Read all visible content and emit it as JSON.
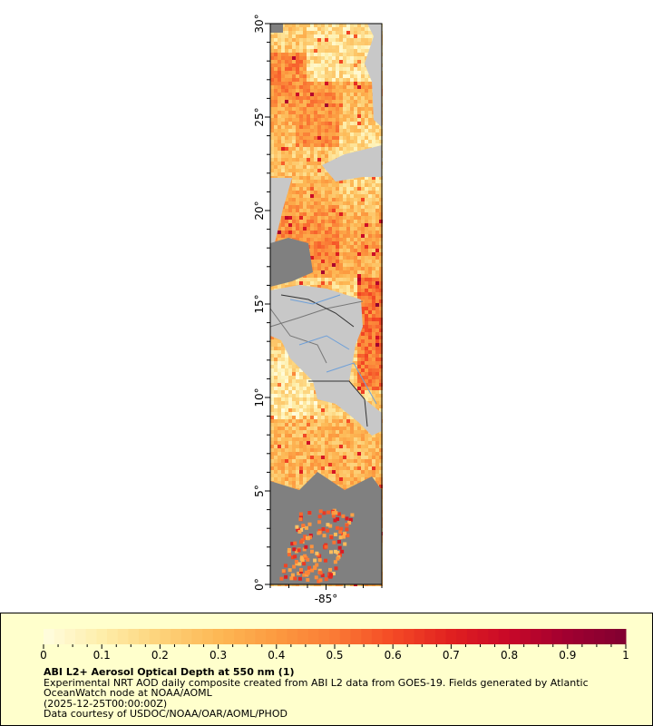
{
  "map": {
    "lat_range": [
      0,
      30
    ],
    "lon_range": [
      -88,
      -82
    ],
    "lat_ticks": [
      {
        "value": 0,
        "label": "0°"
      },
      {
        "value": 5,
        "label": "5°"
      },
      {
        "value": 10,
        "label": "10°"
      },
      {
        "value": 15,
        "label": "15°"
      },
      {
        "value": 20,
        "label": "20°"
      },
      {
        "value": 25,
        "label": "25°"
      },
      {
        "value": 30,
        "label": "30°"
      }
    ],
    "lon_ticks": [
      {
        "value": -85,
        "label": "-85°"
      }
    ],
    "colors": {
      "land": "#c8c8c8",
      "no_data": "#808080",
      "border": "#333333",
      "river": "#6fa0d8"
    }
  },
  "legend": {
    "colorbar": {
      "min": 0,
      "max": 1,
      "tick_labels": [
        "0",
        "0.1",
        "0.2",
        "0.3",
        "0.4",
        "0.5",
        "0.6",
        "0.7",
        "0.8",
        "0.9",
        "1"
      ],
      "colors": [
        "#fffde0",
        "#feeeaa",
        "#fdd27a",
        "#fdb855",
        "#fc9a40",
        "#fa7a35",
        "#f44a25",
        "#e02020",
        "#c80828",
        "#a00030",
        "#800030"
      ]
    },
    "title": "ABI L2+ Aerosol Optical Depth at 550 nm (1)",
    "description_line1": "Experimental NRT AOD daily composite created from ABI L2 data from GOES-19. Fields generated by Atlantic",
    "description_line2": "OceanWatch node at NOAA/AOML",
    "time": "(2025-12-25T00:00:00Z)",
    "credit": "Data courtesy of USDOC/NOAA/OAR/AOML/PHOD"
  }
}
